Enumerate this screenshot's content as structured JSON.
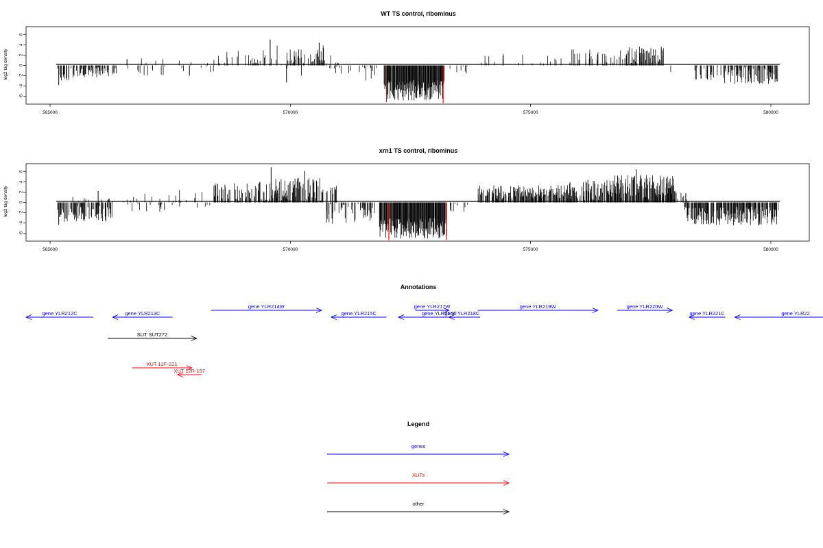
{
  "chart_data": [
    {
      "type": "bar",
      "title": "WT TS control, ribominus",
      "ylabel": "log2 tag density",
      "xlim": [
        564500,
        580800
      ],
      "ylim": [
        -7.5,
        7.5
      ],
      "x_ticks": [
        565000,
        570000,
        575000,
        580000
      ],
      "y_ticks": [
        -6,
        -4,
        -2,
        0,
        2,
        4,
        6
      ],
      "grid": false,
      "colors": {
        "bars": "#000000",
        "highlight": "#ff0000"
      },
      "segments": [
        {
          "start": 565150,
          "end": 565400,
          "side": "neg",
          "mean": 1.8,
          "amp": 1.2,
          "density": 0.5
        },
        {
          "start": 565400,
          "end": 566400,
          "side": "neg",
          "mean": 1.3,
          "amp": 1.2,
          "density": 0.45
        },
        {
          "start": 565900,
          "end": 566600,
          "side": "pos",
          "mean": 0.4,
          "amp": 0.8,
          "density": 0.05
        },
        {
          "start": 566600,
          "end": 568500,
          "side": "neg",
          "mean": 0.8,
          "amp": 1.2,
          "density": 0.05
        },
        {
          "start": 566900,
          "end": 568500,
          "side": "pos",
          "mean": 0.8,
          "amp": 0.8,
          "density": 0.07
        },
        {
          "start": 568500,
          "end": 569500,
          "side": "pos",
          "mean": 1.2,
          "amp": 1.8,
          "density": 0.25
        },
        {
          "start": 569500,
          "end": 569900,
          "side": "pos",
          "mean": 1.6,
          "amp": 2.5,
          "density": 0.3
        },
        {
          "start": 569900,
          "end": 570400,
          "side": "pos",
          "mean": 1.6,
          "amp": 1.6,
          "density": 0.4
        },
        {
          "start": 570400,
          "end": 570700,
          "side": "pos",
          "mean": 2.0,
          "amp": 2.2,
          "density": 0.5
        },
        {
          "start": 569800,
          "end": 570300,
          "side": "neg",
          "mean": 0.5,
          "amp": 1.5,
          "density": 0.05
        },
        {
          "start": 570700,
          "end": 571000,
          "side": "pos",
          "mean": 1.0,
          "amp": 2.0,
          "density": 0.2
        },
        {
          "start": 570800,
          "end": 571800,
          "side": "neg",
          "mean": 1.2,
          "amp": 1.8,
          "density": 0.2
        },
        {
          "start": 571950,
          "end": 573200,
          "side": "neg",
          "mean": 4.8,
          "amp": 2.0,
          "density": 1.0
        },
        {
          "start": 573300,
          "end": 573700,
          "side": "neg",
          "mean": 0.8,
          "amp": 1.0,
          "density": 0.08
        },
        {
          "start": 573900,
          "end": 575800,
          "side": "pos",
          "mean": 1.0,
          "amp": 1.3,
          "density": 0.12
        },
        {
          "start": 575800,
          "end": 577000,
          "side": "pos",
          "mean": 1.5,
          "amp": 1.6,
          "density": 0.3
        },
        {
          "start": 577000,
          "end": 577800,
          "side": "pos",
          "mean": 1.8,
          "amp": 2.0,
          "density": 0.65
        },
        {
          "start": 577800,
          "end": 578400,
          "side": "neg",
          "mean": 0.6,
          "amp": 0.8,
          "density": 0.03
        },
        {
          "start": 578400,
          "end": 579000,
          "side": "neg",
          "mean": 1.5,
          "amp": 1.8,
          "density": 0.3
        },
        {
          "start": 579000,
          "end": 580150,
          "side": "neg",
          "mean": 1.8,
          "amp": 1.8,
          "density": 0.65
        }
      ],
      "spikes": [
        {
          "x": 565180,
          "y": -3.8
        },
        {
          "x": 566600,
          "y": 1.2
        },
        {
          "x": 567900,
          "y": -2.0
        },
        {
          "x": 569580,
          "y": 5.0
        },
        {
          "x": 569920,
          "y": -3.3
        },
        {
          "x": 570600,
          "y": 4.4
        },
        {
          "x": 572700,
          "y": -6.2
        }
      ],
      "highlights": [
        {
          "x": 572000,
          "y": -7.1
        },
        {
          "x": 573180,
          "y": -7.3
        }
      ]
    },
    {
      "type": "bar",
      "title": "xrn1 TS control, ribominus",
      "ylabel": "log2 tag density",
      "xlim": [
        564500,
        580800
      ],
      "ylim": [
        -7.5,
        7.5
      ],
      "x_ticks": [
        565000,
        570000,
        575000,
        580000
      ],
      "y_ticks": [
        -6,
        -4,
        -2,
        0,
        2,
        4,
        6
      ],
      "grid": false,
      "colors": {
        "bars": "#000000",
        "highlight": "#ff0000"
      },
      "segments": [
        {
          "start": 565150,
          "end": 566300,
          "side": "neg",
          "mean": 2.2,
          "amp": 1.6,
          "density": 0.55
        },
        {
          "start": 565300,
          "end": 566300,
          "side": "pos",
          "mean": 0.5,
          "amp": 0.6,
          "density": 0.05
        },
        {
          "start": 566300,
          "end": 567600,
          "side": "neg",
          "mean": 0.8,
          "amp": 1.0,
          "density": 0.08
        },
        {
          "start": 566500,
          "end": 567600,
          "side": "pos",
          "mean": 0.8,
          "amp": 1.0,
          "density": 0.12
        },
        {
          "start": 567600,
          "end": 568400,
          "side": "pos",
          "mean": 1.2,
          "amp": 1.5,
          "density": 0.2
        },
        {
          "start": 567600,
          "end": 568400,
          "side": "neg",
          "mean": 0.6,
          "amp": 0.8,
          "density": 0.05
        },
        {
          "start": 568400,
          "end": 569600,
          "side": "pos",
          "mean": 1.8,
          "amp": 2.2,
          "density": 0.6
        },
        {
          "start": 569600,
          "end": 570700,
          "side": "pos",
          "mean": 2.4,
          "amp": 2.4,
          "density": 0.75
        },
        {
          "start": 570700,
          "end": 571000,
          "side": "pos",
          "mean": 1.5,
          "amp": 1.8,
          "density": 0.4
        },
        {
          "start": 570700,
          "end": 571800,
          "side": "neg",
          "mean": 2.2,
          "amp": 2.0,
          "density": 0.5
        },
        {
          "start": 571850,
          "end": 573250,
          "side": "neg",
          "mean": 5.0,
          "amp": 2.0,
          "density": 1.0
        },
        {
          "start": 573300,
          "end": 573700,
          "side": "neg",
          "mean": 0.8,
          "amp": 1.0,
          "density": 0.1
        },
        {
          "start": 573900,
          "end": 575800,
          "side": "pos",
          "mean": 2.0,
          "amp": 1.4,
          "density": 0.7
        },
        {
          "start": 575800,
          "end": 576700,
          "side": "pos",
          "mean": 2.4,
          "amp": 2.0,
          "density": 0.75
        },
        {
          "start": 576700,
          "end": 578000,
          "side": "pos",
          "mean": 3.0,
          "amp": 2.4,
          "density": 0.9
        },
        {
          "start": 578000,
          "end": 578300,
          "side": "pos",
          "mean": 1.2,
          "amp": 1.0,
          "density": 0.3
        },
        {
          "start": 578200,
          "end": 580150,
          "side": "neg",
          "mean": 2.6,
          "amp": 1.8,
          "density": 0.8
        }
      ],
      "spikes": [
        {
          "x": 565180,
          "y": -4.3
        },
        {
          "x": 566000,
          "y": 2.2
        },
        {
          "x": 569600,
          "y": 6.8
        },
        {
          "x": 570300,
          "y": 6.1
        },
        {
          "x": 577200,
          "y": 6.4
        },
        {
          "x": 572600,
          "y": -6.8
        }
      ],
      "highlights": [
        {
          "x": 572050,
          "y": -7.3
        },
        {
          "x": 573250,
          "y": -7.3
        }
      ]
    }
  ],
  "annotations": {
    "title": "Annotations",
    "colors": {
      "genes": "#0000ff",
      "XUTs": "#ff0000",
      "other": "#000000"
    },
    "items": [
      {
        "label": "gene YLR212C",
        "start": 564500,
        "end": 565900,
        "strand": "-",
        "category": "genes",
        "row": 1
      },
      {
        "label": "gene YLR213C",
        "start": 566300,
        "end": 567550,
        "strand": "-",
        "category": "genes",
        "row": 1
      },
      {
        "label": "gene YLR214W",
        "start": 568350,
        "end": 570650,
        "strand": "+",
        "category": "genes",
        "row": 0
      },
      {
        "label": "gene YLR215C",
        "start": 570850,
        "end": 572000,
        "strand": "-",
        "category": "genes",
        "row": 1
      },
      {
        "label": "gene YLR216C",
        "start": 572250,
        "end": 573950,
        "strand": "-",
        "category": "genes",
        "row": 1
      },
      {
        "label": "gene YLR217W",
        "start": 572600,
        "end": 573300,
        "strand": "+",
        "category": "genes",
        "row": 0
      },
      {
        "label": "gene YLR218C",
        "start": 573300,
        "end": 573850,
        "strand": "-",
        "category": "genes",
        "row": 1
      },
      {
        "label": "gene YLR219W",
        "start": 573900,
        "end": 576400,
        "strand": "+",
        "category": "genes",
        "row": 0
      },
      {
        "label": "gene YLR220W",
        "start": 576800,
        "end": 577950,
        "strand": "+",
        "category": "genes",
        "row": 0
      },
      {
        "label": "gene YLR221C",
        "start": 578300,
        "end": 579050,
        "strand": "-",
        "category": "genes",
        "row": 1
      },
      {
        "label": "gene YLR22",
        "start": 579250,
        "end": 581500,
        "strand": "-",
        "category": "genes",
        "row": 1
      },
      {
        "label": "SUT SUT272",
        "start": 566200,
        "end": 568050,
        "strand": "+",
        "category": "other",
        "row": 2
      },
      {
        "label": "XUT 12F-221",
        "start": 566700,
        "end": 567950,
        "strand": "+",
        "category": "XUTs",
        "row": 3
      },
      {
        "label": "XUT 12R-197",
        "start": 567650,
        "end": 568150,
        "strand": "-",
        "category": "XUTs",
        "row": 4
      }
    ]
  },
  "legend": {
    "title": "Legend",
    "entries": [
      {
        "label": "genes",
        "color": "#0000ff"
      },
      {
        "label": "XUTs",
        "color": "#ff0000"
      },
      {
        "label": "other",
        "color": "#000000"
      }
    ]
  }
}
